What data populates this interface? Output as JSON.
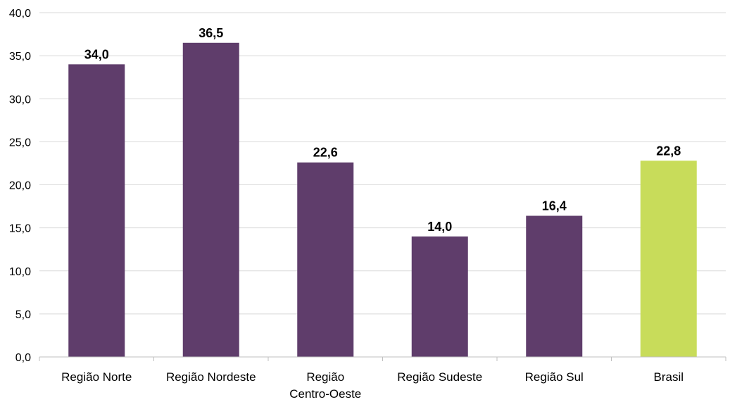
{
  "chart_data": {
    "type": "bar",
    "title": "",
    "xlabel": "",
    "ylabel": "",
    "categories": [
      [
        "Região Norte"
      ],
      [
        "Região Nordeste"
      ],
      [
        "Região",
        "Centro-Oeste"
      ],
      [
        "Região Sudeste"
      ],
      [
        "Região Sul"
      ],
      [
        "Brasil"
      ]
    ],
    "values": [
      34.0,
      36.5,
      22.6,
      14.0,
      16.4,
      22.8
    ],
    "value_labels": [
      "34,0",
      "36,5",
      "22,6",
      "14,0",
      "16,4",
      "22,8"
    ],
    "ylim": [
      0,
      40
    ],
    "y_ticks": [
      0,
      5,
      10,
      15,
      20,
      25,
      30,
      35,
      40
    ],
    "y_tick_labels": [
      "0,0",
      "5,0",
      "10,0",
      "15,0",
      "20,0",
      "25,0",
      "30,0",
      "35,0",
      "40,0"
    ],
    "grid": true,
    "legend": "none",
    "colors": {
      "bar_default": "#5f3d6b",
      "bar_highlight": "#c8dc5a",
      "grid": "#d9d9d9"
    },
    "highlight_category": "Brasil"
  }
}
